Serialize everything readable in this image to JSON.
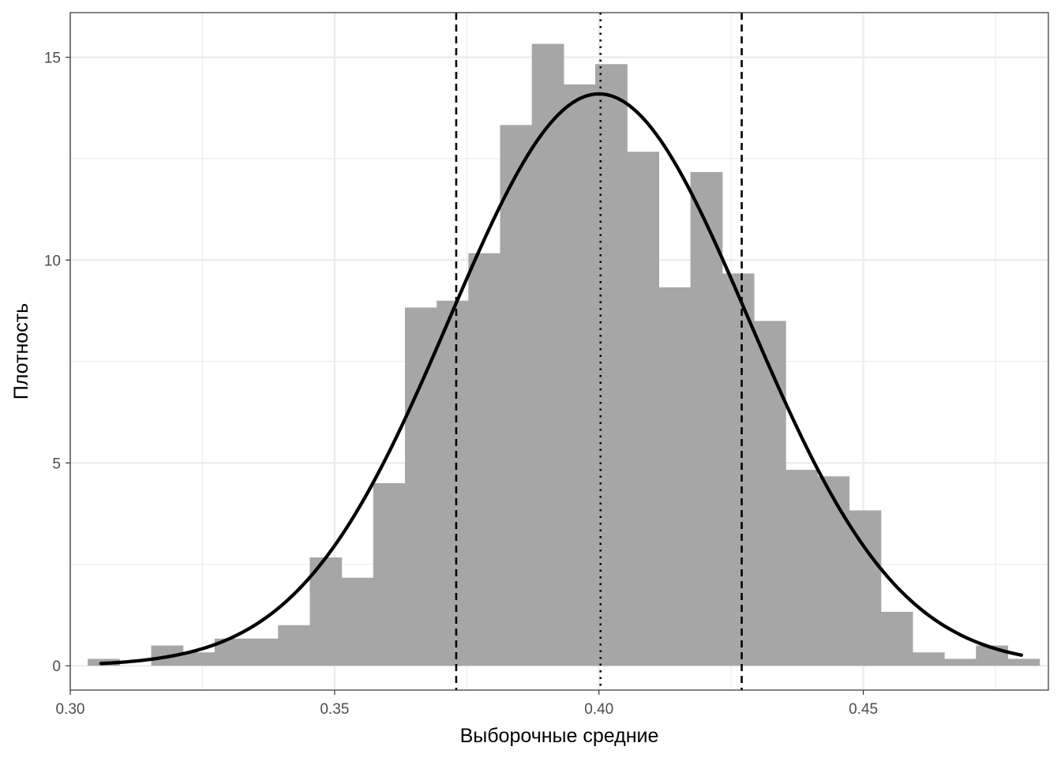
{
  "chart_data": {
    "type": "bar",
    "subtype": "histogram-with-density-curve",
    "xlabel": "Выборочные средние",
    "ylabel": "Плотность",
    "xlim": [
      0.3,
      0.485
    ],
    "ylim": [
      -0.6,
      16.1
    ],
    "x_ticks": [
      0.3,
      0.35,
      0.4,
      0.45
    ],
    "x_tick_labels": [
      "0.30",
      "0.35",
      "0.40",
      "0.45"
    ],
    "y_ticks": [
      0,
      5,
      10,
      15
    ],
    "y_tick_labels": [
      "0",
      "5",
      "10",
      "15"
    ],
    "grid": true,
    "bin_width": 0.006,
    "bin_edges": [
      0.3033,
      0.3093,
      0.3153,
      0.3213,
      0.3273,
      0.3333,
      0.3393,
      0.3453,
      0.3513,
      0.3573,
      0.3633,
      0.3693,
      0.3753,
      0.3813,
      0.3873,
      0.3933,
      0.3993,
      0.4053,
      0.4113,
      0.4173,
      0.4233,
      0.4293,
      0.4353,
      0.4413,
      0.4473,
      0.4533,
      0.4593,
      0.4653,
      0.4713,
      0.4773,
      0.4833
    ],
    "bar_values": [
      0.17,
      0.0,
      0.5,
      0.33,
      0.67,
      0.67,
      1.0,
      2.67,
      2.17,
      4.5,
      8.83,
      9.0,
      10.17,
      13.33,
      15.33,
      14.33,
      14.83,
      12.67,
      9.33,
      12.17,
      9.67,
      8.5,
      4.83,
      4.67,
      3.83,
      1.33,
      0.33,
      0.17,
      0.5,
      0.17
    ],
    "density_curve": {
      "mean": 0.4,
      "sd": 0.0283,
      "x_range": [
        0.3058,
        0.4799
      ]
    },
    "vlines": [
      {
        "x": 0.373,
        "style": "dashed"
      },
      {
        "x": 0.4003,
        "style": "dotted"
      },
      {
        "x": 0.427,
        "style": "dashed"
      }
    ],
    "colors": {
      "bars": "#a6a6a6",
      "curve": "#000000",
      "grid": "#ebebeb",
      "panel_border": "#333333"
    }
  }
}
